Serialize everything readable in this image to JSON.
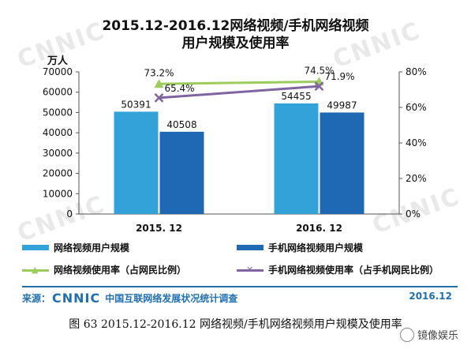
{
  "watermark": "CNNIC",
  "header": {
    "title_line1": "2015.12-2016.12网络视频/手机网络视频",
    "title_line2": "用户规模及使用率",
    "unit": "万人"
  },
  "chart_data": {
    "type": "bar",
    "title": "2015.12-2016.12网络视频/手机网络视频用户规模及使用率",
    "categories": [
      "2015. 12",
      "2016. 12"
    ],
    "series": [
      {
        "name": "网络视频用户规模",
        "kind": "bar",
        "axis": "left",
        "values": [
          50391,
          54455
        ],
        "labels": [
          "50391",
          "54455"
        ],
        "color": "#33a2d8"
      },
      {
        "name": "手机网络视频用户规模",
        "kind": "bar",
        "axis": "left",
        "values": [
          40508,
          49987
        ],
        "labels": [
          "40508",
          "49987"
        ],
        "color": "#1f69b4"
      },
      {
        "name": "网络视频使用率（占网民比例）",
        "kind": "line",
        "axis": "right",
        "values": [
          73.2,
          74.5
        ],
        "labels": [
          "73.2%",
          "74.5%"
        ],
        "color": "#9ccc5a",
        "marker": "triangle"
      },
      {
        "name": "手机网络视频使用率（占手机网民比例）",
        "kind": "line",
        "axis": "right",
        "values": [
          65.4,
          71.9
        ],
        "labels": [
          "65.4%",
          "71.9%"
        ],
        "color": "#8064a2",
        "marker": "x"
      }
    ],
    "y_left": {
      "min": 0,
      "max": 70000,
      "ticks": [
        "0",
        "10000",
        "20000",
        "30000",
        "40000",
        "50000",
        "60000",
        "70000"
      ],
      "label": "万人"
    },
    "y_right": {
      "min": 0,
      "max": 80,
      "ticks": [
        "0%",
        "20%",
        "40%",
        "60%",
        "80%"
      ]
    },
    "grid": false,
    "legend_position": "bottom"
  },
  "legend": {
    "bar1": "网络视频用户规模",
    "bar2": "手机网络视频用户规模",
    "line1": "网络视频使用率（占网民比例）",
    "line2": "手机网络视频使用率（占手机网民比例）",
    "line1_marker": "▲",
    "line2_marker": "✕"
  },
  "footer": {
    "source_prefix": "来源：",
    "source_brand": "CNNIC",
    "source_text": "中国互联网络发展状况统计调查",
    "date": "2016.12"
  },
  "caption": "图 63    2015.12-2016.12 网络视频/手机网络视频用户规模及使用率",
  "badge_text": "镜像娱乐",
  "colors": {
    "accent": "#1f6fb5",
    "bar1": "#33a2d8",
    "bar2": "#1f69b4",
    "line1": "#9ccc5a",
    "line2": "#8064a2"
  }
}
